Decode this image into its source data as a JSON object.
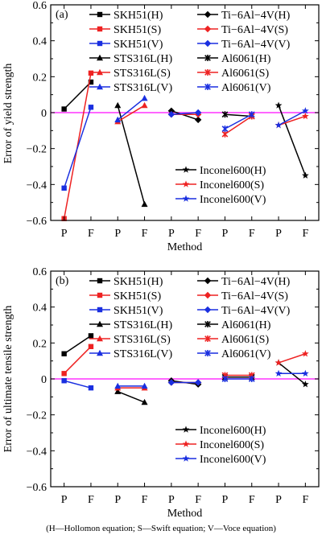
{
  "caption": "(H—Hollomon equation; S—Swift equation; V—Voce equation)",
  "colors": {
    "H": "#000000",
    "S": "#ee2222",
    "V": "#1a2fe0",
    "zero_line": "#ff33ff"
  },
  "chart_data": [
    {
      "panel_label": "(a)",
      "type": "line",
      "ylabel": "Error of yield strength",
      "xlabel": "Method",
      "ylim": [
        -0.6,
        0.6
      ],
      "yticks": [
        "0.6",
        "0.4",
        "0.2",
        "0",
        "−0.2",
        "−0.4",
        "−0.6"
      ],
      "xtick_labels": [
        "P",
        "F",
        "P",
        "F",
        "P",
        "F",
        "P",
        "F",
        "P",
        "F"
      ],
      "grid": false,
      "legend_position": "top",
      "series": [
        {
          "name": "SKH51(H)",
          "eq": "H",
          "marker": "square",
          "group": 0,
          "values": [
            0.02,
            0.17
          ]
        },
        {
          "name": "SKH51(S)",
          "eq": "S",
          "marker": "square",
          "group": 0,
          "values": [
            -0.59,
            0.22
          ]
        },
        {
          "name": "SKH51(V)",
          "eq": "V",
          "marker": "square",
          "group": 0,
          "values": [
            -0.42,
            0.03
          ]
        },
        {
          "name": "STS316L(H)",
          "eq": "H",
          "marker": "triangle",
          "group": 1,
          "values": [
            0.04,
            -0.51
          ]
        },
        {
          "name": "STS316L(S)",
          "eq": "S",
          "marker": "triangle",
          "group": 1,
          "values": [
            -0.05,
            0.04
          ]
        },
        {
          "name": "STS316L(V)",
          "eq": "V",
          "marker": "triangle",
          "group": 1,
          "values": [
            -0.04,
            0.08
          ]
        },
        {
          "name": "Ti−6Al−4V(H)",
          "eq": "H",
          "marker": "diamond",
          "group": 2,
          "values": [
            0.01,
            -0.04
          ]
        },
        {
          "name": "Ti−6Al−4V(S)",
          "eq": "S",
          "marker": "diamond",
          "group": 2,
          "values": [
            -0.01,
            -0.01
          ]
        },
        {
          "name": "Ti−6Al−4V(V)",
          "eq": "V",
          "marker": "diamond",
          "group": 2,
          "values": [
            -0.01,
            0.0
          ]
        },
        {
          "name": "Al6061(H)",
          "eq": "H",
          "marker": "x",
          "group": 3,
          "values": [
            -0.01,
            -0.02
          ]
        },
        {
          "name": "Al6061(S)",
          "eq": "S",
          "marker": "x",
          "group": 3,
          "values": [
            -0.12,
            -0.02
          ]
        },
        {
          "name": "Al6061(V)",
          "eq": "V",
          "marker": "x",
          "group": 3,
          "values": [
            -0.09,
            -0.01
          ]
        },
        {
          "name": "Inconel600(H)",
          "eq": "H",
          "marker": "star",
          "group": 4,
          "values": [
            0.04,
            -0.35
          ]
        },
        {
          "name": "Inconel600(S)",
          "eq": "S",
          "marker": "star",
          "group": 4,
          "values": [
            -0.07,
            -0.02
          ]
        },
        {
          "name": "Inconel600(V)",
          "eq": "V",
          "marker": "star",
          "group": 4,
          "values": [
            -0.07,
            0.01
          ]
        }
      ]
    },
    {
      "panel_label": "(b)",
      "type": "line",
      "ylabel": "Error of ultimate tensile strength",
      "xlabel": "Method",
      "ylim": [
        -0.6,
        0.6
      ],
      "yticks": [
        "0.6",
        "0.4",
        "0.2",
        "0",
        "−0.2",
        "−0.4",
        "−0.6"
      ],
      "xtick_labels": [
        "P",
        "F",
        "P",
        "F",
        "P",
        "F",
        "P",
        "F",
        "P",
        "F"
      ],
      "grid": false,
      "legend_position": "top",
      "series": [
        {
          "name": "SKH51(H)",
          "eq": "H",
          "marker": "square",
          "group": 0,
          "values": [
            0.14,
            0.24
          ]
        },
        {
          "name": "SKH51(S)",
          "eq": "S",
          "marker": "square",
          "group": 0,
          "values": [
            0.03,
            0.18
          ]
        },
        {
          "name": "SKH51(V)",
          "eq": "V",
          "marker": "square",
          "group": 0,
          "values": [
            -0.01,
            -0.05
          ]
        },
        {
          "name": "STS316L(H)",
          "eq": "H",
          "marker": "triangle",
          "group": 1,
          "values": [
            -0.07,
            -0.13
          ]
        },
        {
          "name": "STS316L(S)",
          "eq": "S",
          "marker": "triangle",
          "group": 1,
          "values": [
            -0.05,
            -0.05
          ]
        },
        {
          "name": "STS316L(V)",
          "eq": "V",
          "marker": "triangle",
          "group": 1,
          "values": [
            -0.04,
            -0.04
          ]
        },
        {
          "name": "Ti−6Al−4V(H)",
          "eq": "H",
          "marker": "diamond",
          "group": 2,
          "values": [
            -0.01,
            -0.03
          ]
        },
        {
          "name": "Ti−6Al−4V(S)",
          "eq": "S",
          "marker": "diamond",
          "group": 2,
          "values": [
            -0.02,
            -0.02
          ]
        },
        {
          "name": "Ti−6Al−4V(V)",
          "eq": "V",
          "marker": "diamond",
          "group": 2,
          "values": [
            -0.02,
            -0.02
          ]
        },
        {
          "name": "Al6061(H)",
          "eq": "H",
          "marker": "x",
          "group": 3,
          "values": [
            0.01,
            0.01
          ]
        },
        {
          "name": "Al6061(S)",
          "eq": "S",
          "marker": "x",
          "group": 3,
          "values": [
            0.02,
            0.02
          ]
        },
        {
          "name": "Al6061(V)",
          "eq": "V",
          "marker": "x",
          "group": 3,
          "values": [
            0.0,
            0.0
          ]
        },
        {
          "name": "Inconel600(H)",
          "eq": "H",
          "marker": "star",
          "group": 4,
          "values": [
            0.09,
            -0.03
          ]
        },
        {
          "name": "Inconel600(S)",
          "eq": "S",
          "marker": "star",
          "group": 4,
          "values": [
            0.09,
            0.14
          ]
        },
        {
          "name": "Inconel600(V)",
          "eq": "V",
          "marker": "star",
          "group": 4,
          "values": [
            0.03,
            0.03
          ]
        }
      ]
    }
  ]
}
